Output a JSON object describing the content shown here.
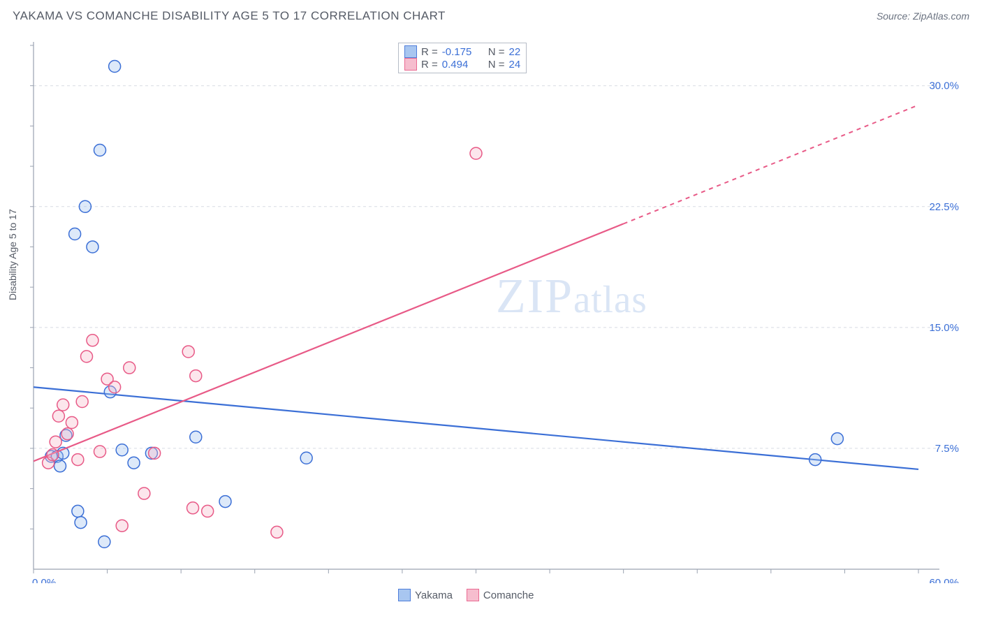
{
  "title": "YAKAMA VS COMANCHE DISABILITY AGE 5 TO 17 CORRELATION CHART",
  "source": "Source: ZipAtlas.com",
  "y_axis_label": "Disability Age 5 to 17",
  "watermark": "ZIPatlas",
  "chart": {
    "type": "scatter",
    "xlim": [
      0,
      60
    ],
    "ylim": [
      0,
      32.5
    ],
    "x_ticks_pct": [
      "0.0%",
      "60.0%"
    ],
    "y_ticks_pct": [
      "7.5%",
      "15.0%",
      "22.5%",
      "30.0%"
    ],
    "y_tick_values": [
      7.5,
      15.0,
      22.5,
      30.0
    ],
    "grid_color": "#d7dbe3",
    "axis_color": "#9aa2b1",
    "tick_label_color": "#3b6fd6",
    "background": "#ffffff",
    "marker_radius": 8.5,
    "marker_stroke_width": 1.5,
    "marker_fill_opacity": 0.35,
    "series": [
      {
        "name": "Yakama",
        "color_stroke": "#3b6fd6",
        "color_fill": "#9fc0ef",
        "R": "-0.175",
        "N": "22",
        "trend": {
          "x1": 0,
          "y1": 11.3,
          "x2": 60,
          "y2": 6.2,
          "solid_until_x": 60
        },
        "points": [
          [
            1.2,
            7.0
          ],
          [
            1.6,
            7.0
          ],
          [
            1.8,
            6.4
          ],
          [
            2.0,
            7.2
          ],
          [
            2.2,
            8.3
          ],
          [
            2.8,
            20.8
          ],
          [
            3.5,
            22.5
          ],
          [
            4.0,
            20.0
          ],
          [
            4.5,
            26.0
          ],
          [
            5.5,
            31.2
          ],
          [
            3.2,
            2.9
          ],
          [
            4.8,
            1.7
          ],
          [
            5.2,
            11.0
          ],
          [
            6.0,
            7.4
          ],
          [
            6.8,
            6.6
          ],
          [
            8.0,
            7.2
          ],
          [
            11.0,
            8.2
          ],
          [
            13.0,
            4.2
          ],
          [
            18.5,
            6.9
          ],
          [
            54.5,
            8.1
          ],
          [
            53.0,
            6.8
          ],
          [
            3.0,
            3.6
          ]
        ]
      },
      {
        "name": "Comanche",
        "color_stroke": "#e85a87",
        "color_fill": "#f6b6c9",
        "R": "0.494",
        "N": "24",
        "trend": {
          "x1": 0,
          "y1": 6.7,
          "x2": 60,
          "y2": 28.8,
          "solid_until_x": 40
        },
        "points": [
          [
            1.0,
            6.6
          ],
          [
            1.3,
            7.1
          ],
          [
            1.5,
            7.9
          ],
          [
            1.7,
            9.5
          ],
          [
            2.0,
            10.2
          ],
          [
            2.3,
            8.4
          ],
          [
            2.6,
            9.1
          ],
          [
            3.0,
            6.8
          ],
          [
            3.3,
            10.4
          ],
          [
            3.6,
            13.2
          ],
          [
            4.0,
            14.2
          ],
          [
            4.5,
            7.3
          ],
          [
            5.0,
            11.8
          ],
          [
            5.5,
            11.3
          ],
          [
            6.0,
            2.7
          ],
          [
            6.5,
            12.5
          ],
          [
            7.5,
            4.7
          ],
          [
            8.2,
            7.2
          ],
          [
            10.5,
            13.5
          ],
          [
            11.0,
            12.0
          ],
          [
            10.8,
            3.8
          ],
          [
            11.8,
            3.6
          ],
          [
            16.5,
            2.3
          ],
          [
            30.0,
            25.8
          ]
        ]
      }
    ]
  },
  "legend_top": {
    "rows": [
      {
        "series": 0,
        "r_label": "R =",
        "n_label": "N ="
      },
      {
        "series": 1,
        "r_label": "R =",
        "n_label": "N ="
      }
    ]
  },
  "legend_bottom": {
    "items": [
      "Yakama",
      "Comanche"
    ]
  }
}
